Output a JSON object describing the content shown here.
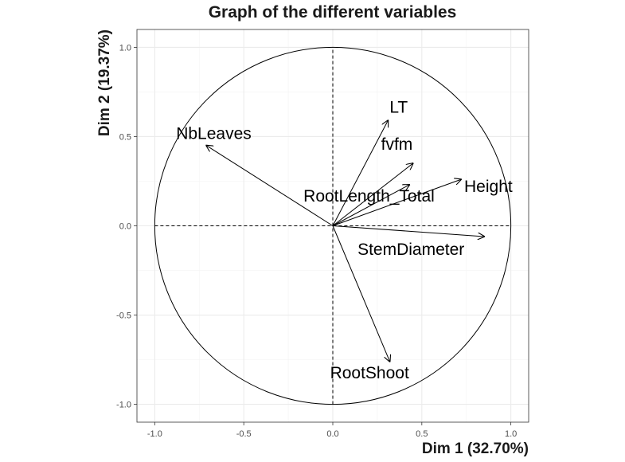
{
  "chart_data": {
    "type": "scatter",
    "title": "Graph of the different variables",
    "xlabel": "Dim 1 (32.70%)",
    "ylabel": "Dim 2 (19.37%)",
    "xlim": [
      -1.1,
      1.1
    ],
    "ylim": [
      -1.1,
      1.1
    ],
    "x_ticks": [
      "-1.0",
      "-0.5",
      "0.0",
      "0.5",
      "1.0"
    ],
    "y_ticks": [
      "-1.0",
      "-0.5",
      "0.0",
      "0.5",
      "1.0"
    ],
    "grid": true,
    "correlation_circle": true,
    "variables": [
      {
        "name": "LT",
        "x": 0.31,
        "y": 0.59
      },
      {
        "name": "NbLeaves",
        "x": -0.71,
        "y": 0.45
      },
      {
        "name": "fvfm",
        "x": 0.45,
        "y": 0.35
      },
      {
        "name": "RootLength_Total",
        "x": 0.43,
        "y": 0.23
      },
      {
        "name": "Height",
        "x": 0.72,
        "y": 0.26
      },
      {
        "name": "StemDiameter",
        "x": 0.85,
        "y": -0.06
      },
      {
        "name": "RootShoot",
        "x": 0.32,
        "y": -0.76
      }
    ],
    "colors": {
      "axis_text": "#4d4d4d",
      "grid": "#ebebeb",
      "panel_border": "#333333",
      "arrow": "#000000"
    }
  }
}
